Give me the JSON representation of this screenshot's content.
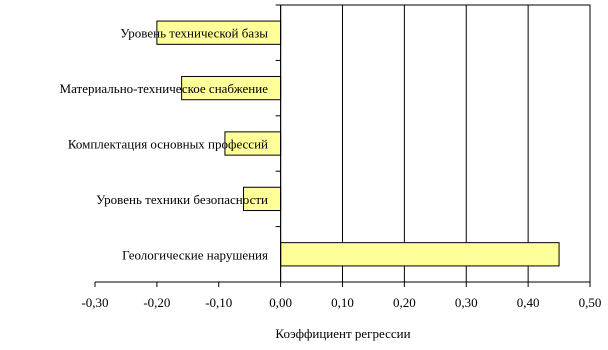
{
  "chart_data": {
    "type": "bar",
    "orientation": "horizontal",
    "categories": [
      "Уровень технической базы",
      "Материально-техническое снабжение",
      "Комплектация основных профессий",
      "Уровень техники безопасности",
      "Геологические нарушения"
    ],
    "values": [
      -0.2,
      -0.16,
      -0.09,
      -0.06,
      0.45
    ],
    "xlabel": "Коэффициент регрессии",
    "ylabel": "",
    "xlim": [
      -0.3,
      0.5
    ],
    "x_ticks": [
      -0.3,
      -0.2,
      -0.1,
      0.0,
      0.1,
      0.2,
      0.3,
      0.4,
      0.5
    ],
    "x_tick_labels": [
      "-0,30",
      "-0,20",
      "-0,10",
      "0,00",
      "0,10",
      "0,20",
      "0,30",
      "0,40",
      "0,50"
    ],
    "grid": "vertical lines on positive side",
    "legend": "none",
    "bar_color": "#ffff99",
    "bar_stroke": "#000000"
  }
}
